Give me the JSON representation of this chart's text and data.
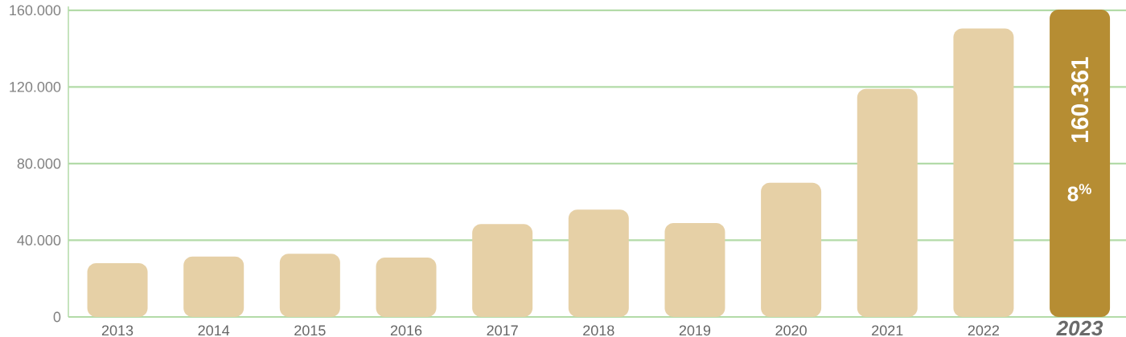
{
  "chart_data": {
    "type": "bar",
    "categories": [
      "2013",
      "2014",
      "2015",
      "2016",
      "2017",
      "2018",
      "2019",
      "2020",
      "2021",
      "2022",
      "2023"
    ],
    "values": [
      28000,
      31500,
      33000,
      31000,
      48500,
      56000,
      49000,
      70000,
      119000,
      150500,
      160361
    ],
    "colors": [
      "#e6d0a6",
      "#e6d0a6",
      "#e6d0a6",
      "#e6d0a6",
      "#e6d0a6",
      "#e6d0a6",
      "#e6d0a6",
      "#e6d0a6",
      "#e6d0a6",
      "#e6d0a6",
      "#b68d33"
    ],
    "ylim": [
      0,
      162000
    ],
    "yticks": [
      0,
      {
        "value": 40000,
        "label": "40.000"
      },
      {
        "value": 80000,
        "label": "80.000"
      },
      {
        "value": 120000,
        "label": "120.000"
      },
      {
        "value": 160000,
        "label": "160.000"
      }
    ],
    "grid": "y",
    "value_labels": [
      null,
      null,
      null,
      null,
      null,
      null,
      null,
      null,
      null,
      null,
      "160.361"
    ],
    "annotations": [
      "8$^{%}$"
    ]
  }
}
